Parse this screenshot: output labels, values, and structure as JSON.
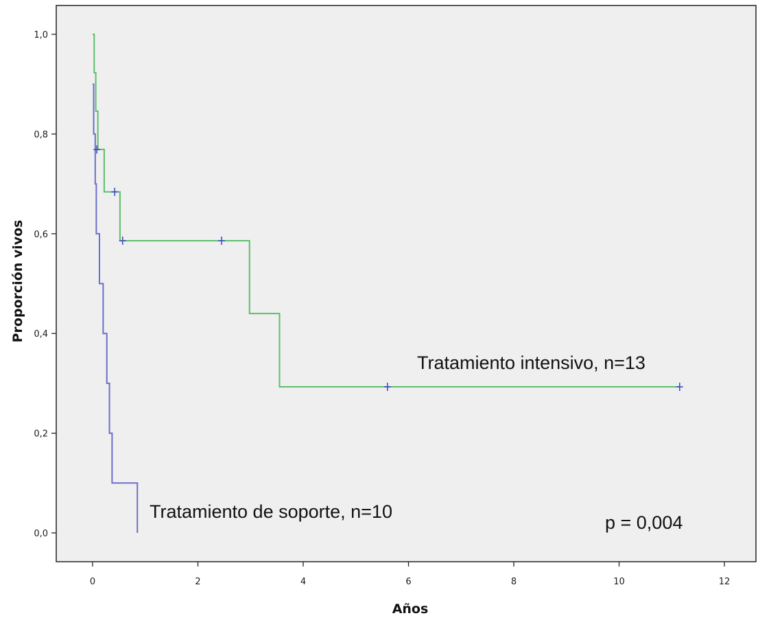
{
  "chart_data": {
    "type": "line",
    "subtype": "kaplan-meier survival curve",
    "title": "",
    "xlabel": "Años",
    "ylabel": "Proporción vivos",
    "xlim": [
      0,
      12
    ],
    "ylim": [
      0,
      1
    ],
    "x_ticks": [
      0,
      2,
      4,
      6,
      8,
      10,
      12
    ],
    "x_tick_labels": [
      "0",
      "2",
      "4",
      "6",
      "8",
      "10",
      "12"
    ],
    "y_ticks": [
      0,
      0.2,
      0.4,
      0.6,
      0.8,
      1.0
    ],
    "y_tick_labels": [
      "0,0",
      "0,2",
      "0,4",
      "0,6",
      "0,8",
      "1,0"
    ],
    "grid": false,
    "legend": "none",
    "plot_background": "#efefef",
    "series": [
      {
        "label": "Tratamiento intensivo, n=13",
        "color": "#5cbf6a",
        "censor_color": "#3f4fbf",
        "steps": [
          [
            0,
            1.0
          ],
          [
            0.03,
            0.923
          ],
          [
            0.06,
            0.846
          ],
          [
            0.1,
            0.769
          ],
          [
            0.22,
            0.684
          ],
          [
            0.52,
            0.586
          ],
          [
            2.98,
            0.44
          ],
          [
            3.55,
            0.293
          ],
          [
            11.15,
            0.293
          ]
        ],
        "censored": [
          [
            0.08,
            0.769
          ],
          [
            0.42,
            0.684
          ],
          [
            0.57,
            0.586
          ],
          [
            2.45,
            0.586
          ],
          [
            5.6,
            0.293
          ],
          [
            11.15,
            0.293
          ]
        ]
      },
      {
        "label": "Tratamiento de soporte, n=10",
        "color": "#6a6fc8",
        "steps": [
          [
            0,
            0.9
          ],
          [
            0.02,
            0.8
          ],
          [
            0.05,
            0.7
          ],
          [
            0.07,
            0.6
          ],
          [
            0.13,
            0.5
          ],
          [
            0.2,
            0.4
          ],
          [
            0.27,
            0.3
          ],
          [
            0.32,
            0.2
          ],
          [
            0.37,
            0.1
          ],
          [
            0.85,
            0.0
          ]
        ],
        "censored": []
      }
    ],
    "annotations": [
      {
        "text": "Tratamiento intensivo, n=13"
      },
      {
        "text": "Tratamiento de soporte, n=10"
      },
      {
        "text": "p = 0,004"
      }
    ]
  }
}
